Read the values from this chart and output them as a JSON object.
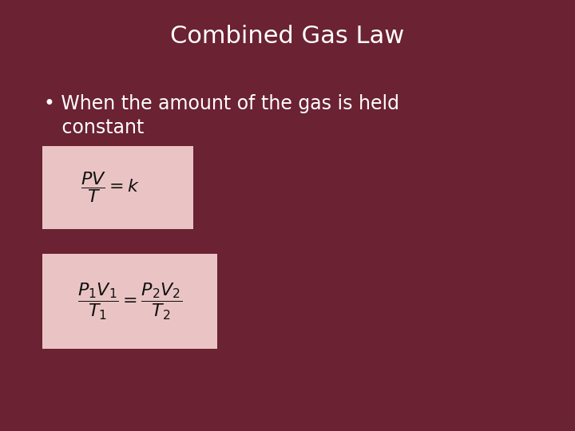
{
  "background_color": "#6B2232",
  "title": "Combined Gas Law",
  "title_color": "#FFFFFF",
  "title_fontsize": 22,
  "bullet_line1": "• When the amount of the gas is held",
  "bullet_line2": "   constant",
  "bullet_color": "#FFFFFF",
  "bullet_fontsize": 17,
  "formula_box_color": "#EAC4C4",
  "formula1": "$\\dfrac{PV}{T} = k$",
  "formula2": "$\\dfrac{P_1V_1}{T_1} = \\dfrac{P_2V_2}{T_2}$",
  "formula_fontsize": 16,
  "formula_color": "#111111"
}
